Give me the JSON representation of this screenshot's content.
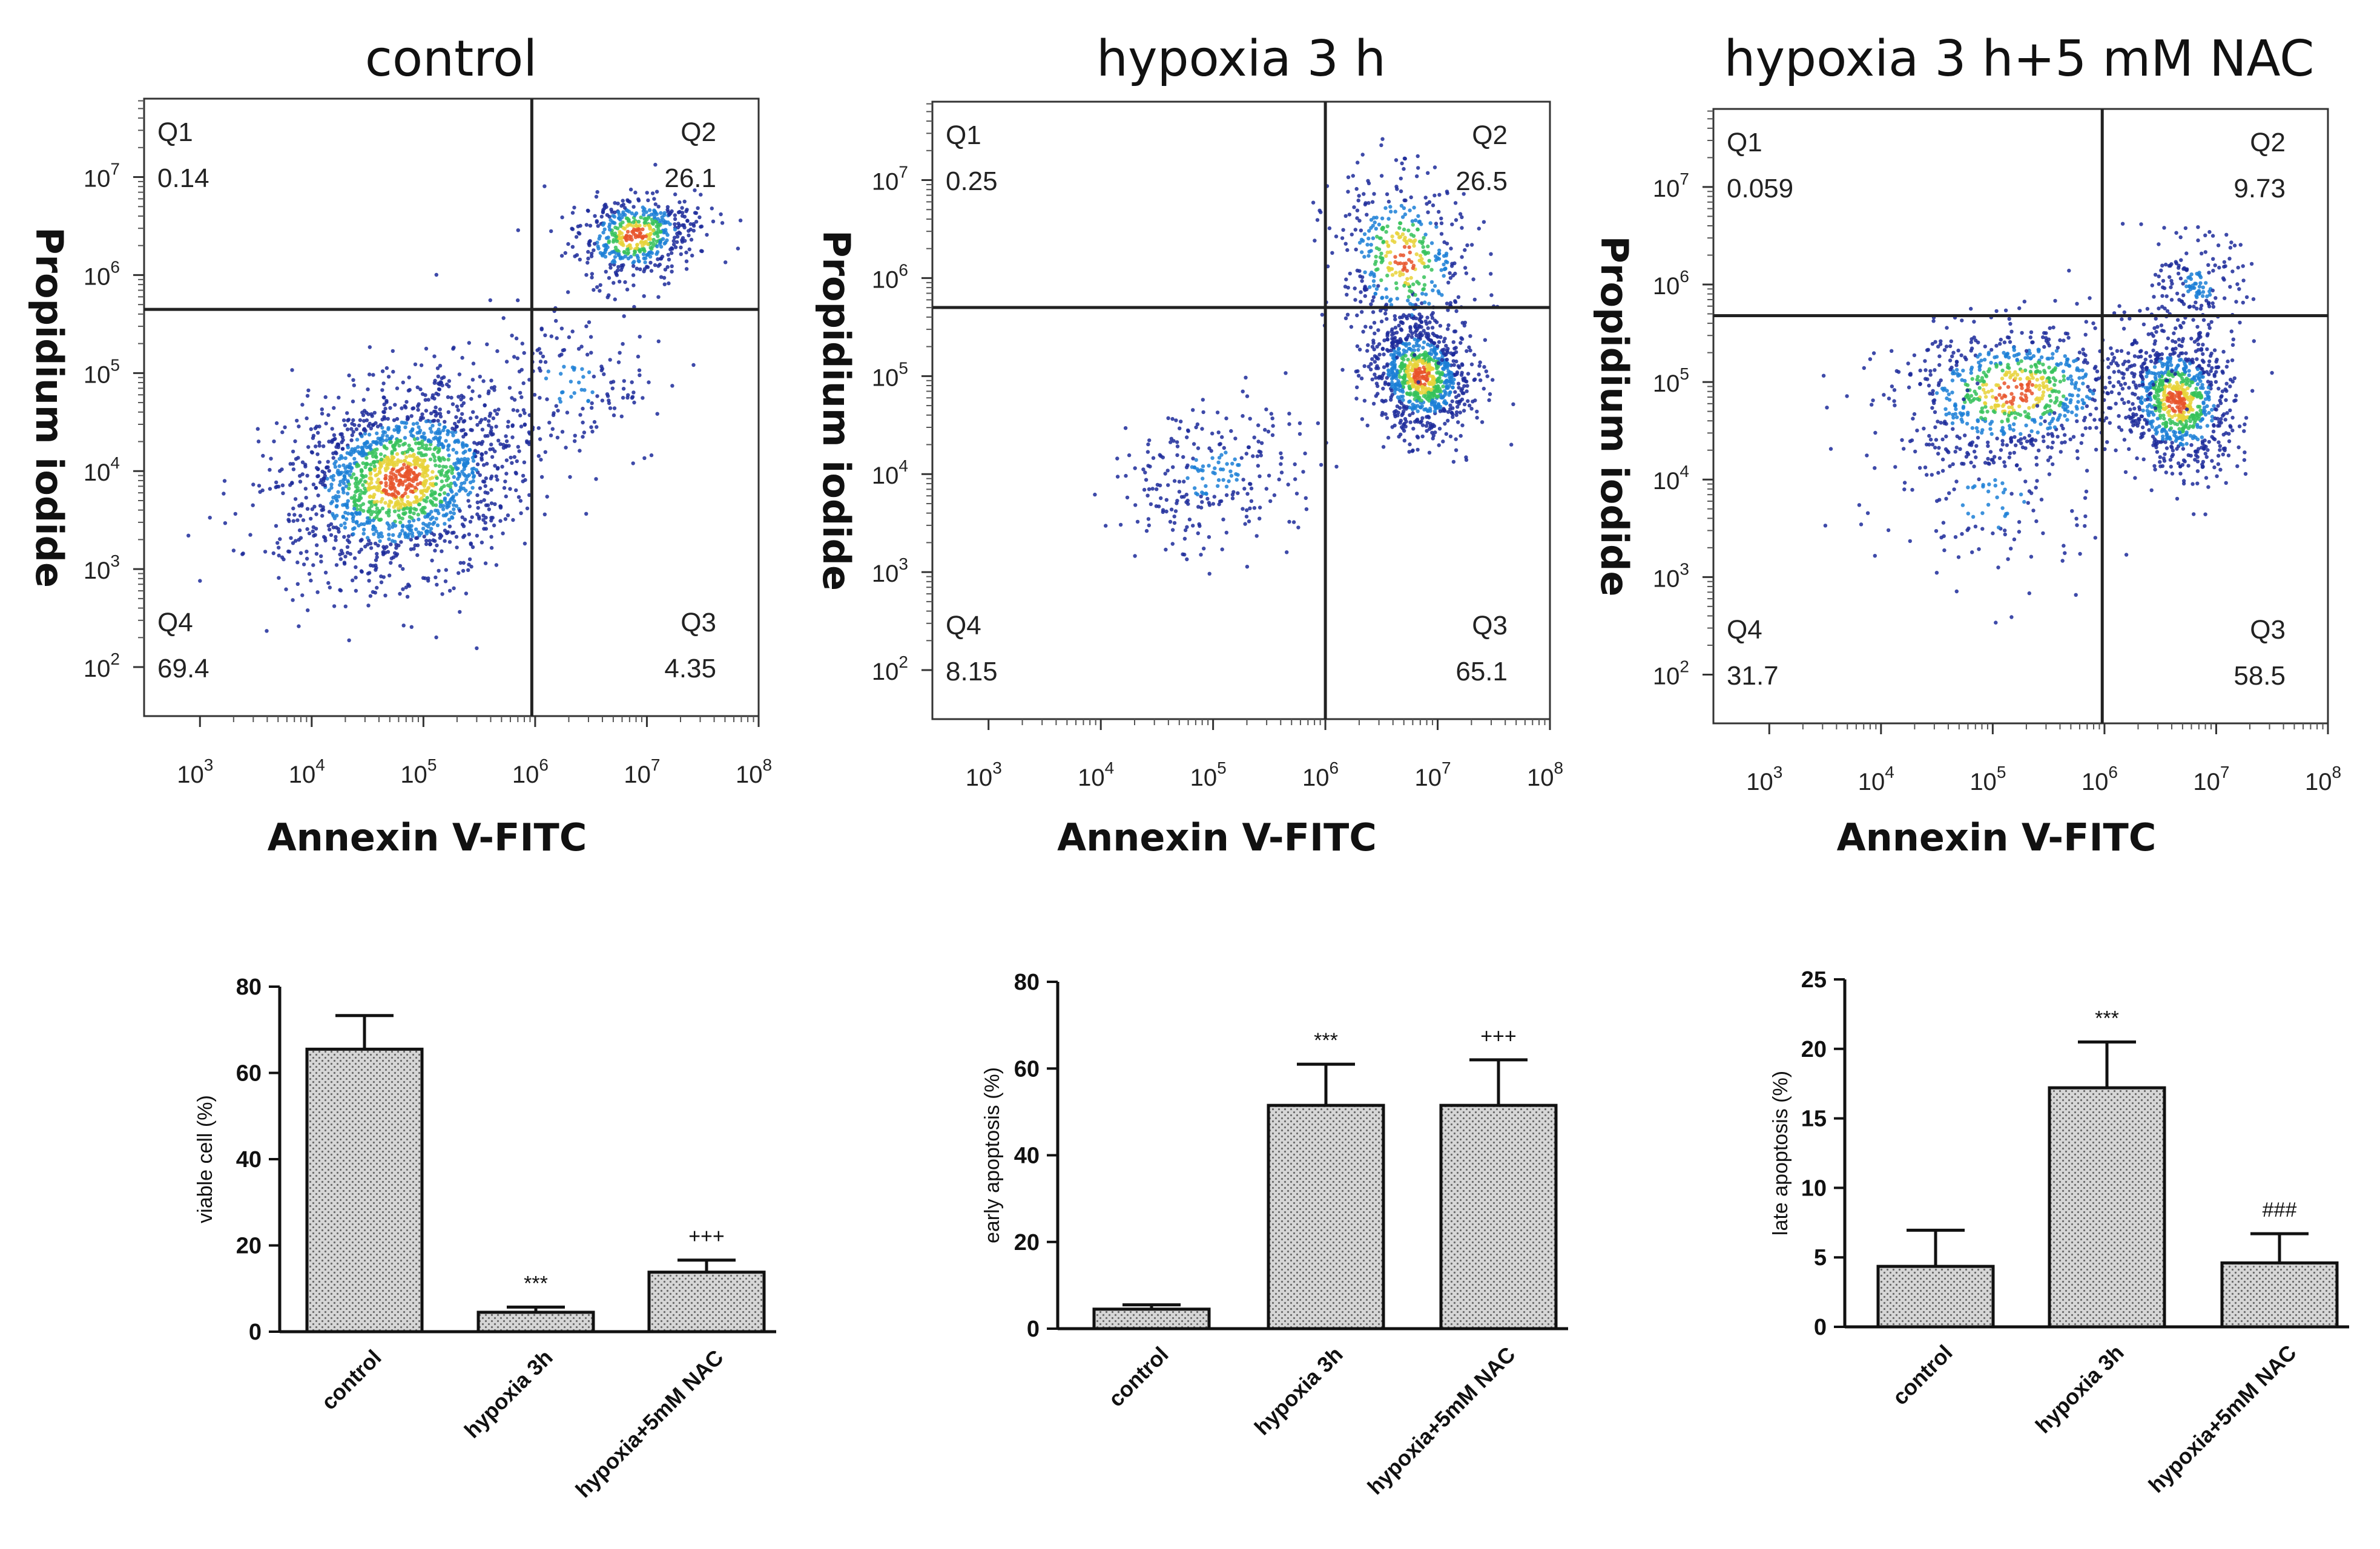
{
  "chart_data": [
    {
      "type": "scatter",
      "title": "control",
      "xlabel": "Annexin V-FITC",
      "ylabel": "Propidium iodide",
      "xlim_log10": [
        2.5,
        8
      ],
      "ylim_log10": [
        1.5,
        7.8
      ],
      "x_ticks": [
        {
          "base": "10",
          "exp": "3"
        },
        {
          "base": "10",
          "exp": "4"
        },
        {
          "base": "10",
          "exp": "5"
        },
        {
          "base": "10",
          "exp": "6"
        },
        {
          "base": "10",
          "exp": "7"
        },
        {
          "base": "10",
          "exp": "8"
        }
      ],
      "y_ticks": [
        {
          "base": "10",
          "exp": "2"
        },
        {
          "base": "10",
          "exp": "3"
        },
        {
          "base": "10",
          "exp": "4"
        },
        {
          "base": "10",
          "exp": "5"
        },
        {
          "base": "10",
          "exp": "6"
        },
        {
          "base": "10",
          "exp": "7"
        }
      ],
      "gates_log10": {
        "x": 5.97,
        "y": 5.65
      },
      "quadrants": [
        {
          "name": "Q1",
          "value": "0.14",
          "pos": "top-left"
        },
        {
          "name": "Q2",
          "value": "26.1",
          "pos": "top-right"
        },
        {
          "name": "Q3",
          "value": "4.35",
          "pos": "bottom-right"
        },
        {
          "name": "Q4",
          "value": "69.4",
          "pos": "bottom-left"
        }
      ],
      "clusters": [
        {
          "x": 4.8,
          "y": 3.9,
          "sx": 0.55,
          "sy": 0.45,
          "n": 1700,
          "rot": 0.55
        },
        {
          "x": 6.9,
          "y": 6.4,
          "sx": 0.28,
          "sy": 0.22,
          "n": 520,
          "rot": 0.4
        },
        {
          "x": 6.3,
          "y": 4.9,
          "sx": 0.35,
          "sy": 0.45,
          "n": 160,
          "rot": 0.9
        }
      ]
    },
    {
      "type": "scatter",
      "title": "hypoxia 3 h",
      "xlabel": "Annexin V-FITC",
      "ylabel": "Propidium iodide",
      "xlim_log10": [
        2.5,
        8
      ],
      "ylim_log10": [
        1.5,
        7.8
      ],
      "x_ticks": [
        {
          "base": "10",
          "exp": "3"
        },
        {
          "base": "10",
          "exp": "4"
        },
        {
          "base": "10",
          "exp": "5"
        },
        {
          "base": "10",
          "exp": "6"
        },
        {
          "base": "10",
          "exp": "7"
        },
        {
          "base": "10",
          "exp": "8"
        }
      ],
      "y_ticks": [
        {
          "base": "10",
          "exp": "2"
        },
        {
          "base": "10",
          "exp": "3"
        },
        {
          "base": "10",
          "exp": "4"
        },
        {
          "base": "10",
          "exp": "5"
        },
        {
          "base": "10",
          "exp": "6"
        },
        {
          "base": "10",
          "exp": "7"
        }
      ],
      "gates_log10": {
        "x": 6.0,
        "y": 5.7
      },
      "quadrants": [
        {
          "name": "Q1",
          "value": "0.25",
          "pos": "top-left"
        },
        {
          "name": "Q2",
          "value": "26.5",
          "pos": "top-right"
        },
        {
          "name": "Q3",
          "value": "65.1",
          "pos": "bottom-right"
        },
        {
          "name": "Q4",
          "value": "8.15",
          "pos": "bottom-left"
        }
      ],
      "clusters": [
        {
          "x": 6.85,
          "y": 5.0,
          "sx": 0.22,
          "sy": 0.3,
          "n": 900,
          "rot": 0.3
        },
        {
          "x": 6.7,
          "y": 6.2,
          "sx": 0.3,
          "sy": 0.45,
          "n": 420,
          "rot": 0.2
        },
        {
          "x": 5.0,
          "y": 4.0,
          "sx": 0.45,
          "sy": 0.35,
          "n": 260,
          "rot": 0.6
        }
      ]
    },
    {
      "type": "scatter",
      "title": "hypoxia 3 h+5 mM NAC",
      "xlabel": "Annexin V-FITC",
      "ylabel": "Propidium iodide",
      "xlim_log10": [
        2.5,
        8
      ],
      "ylim_log10": [
        1.5,
        7.8
      ],
      "x_ticks": [
        {
          "base": "10",
          "exp": "3"
        },
        {
          "base": "10",
          "exp": "4"
        },
        {
          "base": "10",
          "exp": "5"
        },
        {
          "base": "10",
          "exp": "6"
        },
        {
          "base": "10",
          "exp": "7"
        },
        {
          "base": "10",
          "exp": "8"
        }
      ],
      "y_ticks": [
        {
          "base": "10",
          "exp": "2"
        },
        {
          "base": "10",
          "exp": "3"
        },
        {
          "base": "10",
          "exp": "4"
        },
        {
          "base": "10",
          "exp": "5"
        },
        {
          "base": "10",
          "exp": "6"
        },
        {
          "base": "10",
          "exp": "7"
        }
      ],
      "gates_log10": {
        "x": 5.98,
        "y": 5.68
      },
      "quadrants": [
        {
          "name": "Q1",
          "value": "0.059",
          "pos": "top-left"
        },
        {
          "name": "Q2",
          "value": "9.73",
          "pos": "top-right"
        },
        {
          "name": "Q3",
          "value": "58.5",
          "pos": "bottom-right"
        },
        {
          "name": "Q4",
          "value": "31.7",
          "pos": "bottom-left"
        }
      ],
      "clusters": [
        {
          "x": 6.65,
          "y": 4.8,
          "sx": 0.25,
          "sy": 0.35,
          "n": 850,
          "rot": 0.2
        },
        {
          "x": 5.2,
          "y": 4.9,
          "sx": 0.55,
          "sy": 0.35,
          "n": 750,
          "rot": 0.15
        },
        {
          "x": 6.85,
          "y": 6.0,
          "sx": 0.2,
          "sy": 0.25,
          "n": 160,
          "rot": 0.3
        },
        {
          "x": 5.0,
          "y": 3.8,
          "sx": 0.5,
          "sy": 0.5,
          "n": 140,
          "rot": 0.3
        }
      ]
    },
    {
      "type": "bar",
      "ylabel": "viable cell (%)",
      "categories": [
        "control",
        "hypoxia 3h",
        "hypoxia+5mM NAC"
      ],
      "values": [
        65.5,
        4.5,
        13.8
      ],
      "errors": [
        7.8,
        1.2,
        2.8
      ],
      "annotations": [
        "",
        "***",
        "+++"
      ],
      "ylim": [
        0,
        80
      ],
      "yticks": [
        0,
        20,
        40,
        60,
        80
      ]
    },
    {
      "type": "bar",
      "ylabel": "early apoptosis (%)",
      "categories": [
        "control",
        "hypoxia 3h",
        "hypoxia+5mM NAC"
      ],
      "values": [
        4.5,
        51.5,
        51.5
      ],
      "errors": [
        1.0,
        9.5,
        10.5
      ],
      "annotations": [
        "",
        "***",
        "+++"
      ],
      "ylim": [
        0,
        80
      ],
      "yticks": [
        0,
        20,
        40,
        60,
        80
      ]
    },
    {
      "type": "bar",
      "ylabel": "late apoptosis (%)",
      "categories": [
        "control",
        "hypoxia 3h",
        "hypoxia+5mM NAC"
      ],
      "values": [
        4.35,
        17.2,
        4.6
      ],
      "errors": [
        2.6,
        3.3,
        2.1
      ],
      "annotations": [
        "",
        "***",
        "###"
      ],
      "ylim": [
        0,
        25
      ],
      "yticks": [
        0,
        5,
        10,
        15,
        20,
        25
      ]
    }
  ]
}
